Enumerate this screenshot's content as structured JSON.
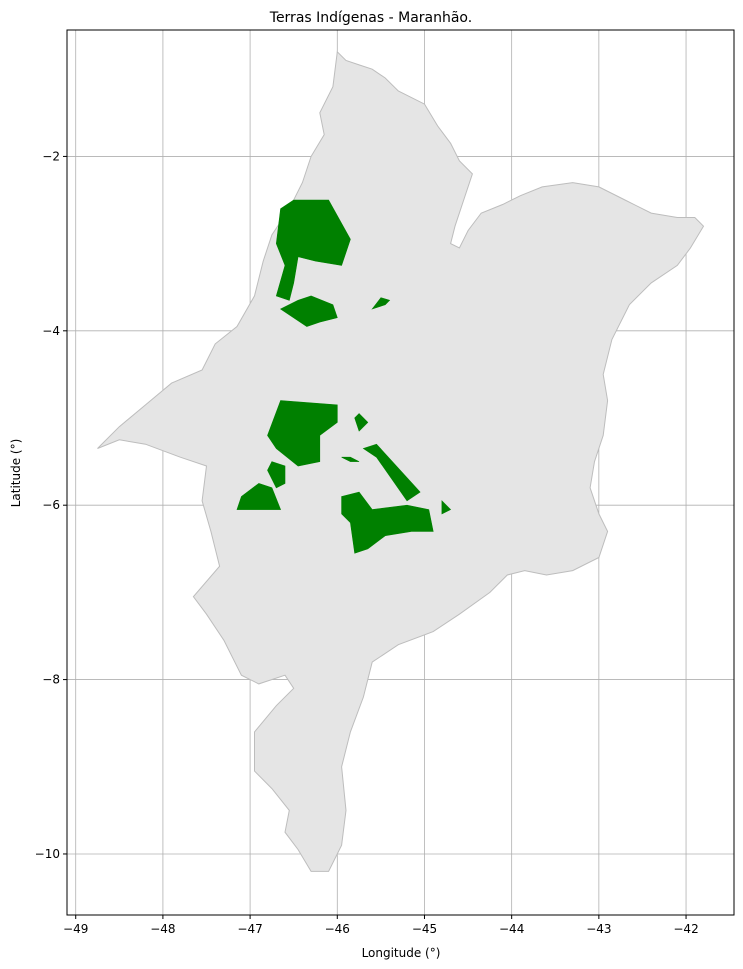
{
  "map": {
    "title": "Terras Indígenas - Maranhão.",
    "xlabel": "Longitude (°)",
    "ylabel": "Latitude (°)",
    "xlim": [
      -49.1,
      -41.45
    ],
    "ylim": [
      -10.7,
      -0.55
    ],
    "grid": true,
    "x_ticks": [
      {
        "value": -49,
        "label": "−49"
      },
      {
        "value": -48,
        "label": "−48"
      },
      {
        "value": -47,
        "label": "−47"
      },
      {
        "value": -46,
        "label": "−46"
      },
      {
        "value": -45,
        "label": "−45"
      },
      {
        "value": -44,
        "label": "−44"
      },
      {
        "value": -43,
        "label": "−43"
      },
      {
        "value": -42,
        "label": "−42"
      }
    ],
    "y_ticks": [
      {
        "value": -2,
        "label": "−2"
      },
      {
        "value": -4,
        "label": "−4"
      },
      {
        "value": -6,
        "label": "−6"
      },
      {
        "value": -8,
        "label": "−8"
      },
      {
        "value": -10,
        "label": "−10"
      }
    ],
    "colors": {
      "state_fill": "#e5e5e5",
      "state_edge": "#bdbdbd",
      "territory_fill": "#008000",
      "grid": "#b0b0b0"
    },
    "state_outline": [
      [
        -46.0,
        -0.8
      ],
      [
        -45.9,
        -0.9
      ],
      [
        -45.75,
        -0.95
      ],
      [
        -45.6,
        -1.0
      ],
      [
        -45.45,
        -1.1
      ],
      [
        -45.3,
        -1.25
      ],
      [
        -45.0,
        -1.4
      ],
      [
        -44.85,
        -1.65
      ],
      [
        -44.7,
        -1.85
      ],
      [
        -44.6,
        -2.05
      ],
      [
        -44.45,
        -2.2
      ],
      [
        -44.55,
        -2.5
      ],
      [
        -44.65,
        -2.8
      ],
      [
        -44.7,
        -3.0
      ],
      [
        -44.6,
        -3.05
      ],
      [
        -44.5,
        -2.85
      ],
      [
        -44.35,
        -2.65
      ],
      [
        -44.1,
        -2.55
      ],
      [
        -43.9,
        -2.45
      ],
      [
        -43.65,
        -2.35
      ],
      [
        -43.3,
        -2.3
      ],
      [
        -43.0,
        -2.35
      ],
      [
        -42.7,
        -2.5
      ],
      [
        -42.4,
        -2.65
      ],
      [
        -42.1,
        -2.7
      ],
      [
        -41.9,
        -2.7
      ],
      [
        -41.8,
        -2.8
      ],
      [
        -41.95,
        -3.05
      ],
      [
        -42.1,
        -3.25
      ],
      [
        -42.4,
        -3.45
      ],
      [
        -42.65,
        -3.7
      ],
      [
        -42.85,
        -4.1
      ],
      [
        -42.95,
        -4.5
      ],
      [
        -42.9,
        -4.8
      ],
      [
        -42.95,
        -5.2
      ],
      [
        -43.05,
        -5.5
      ],
      [
        -43.1,
        -5.8
      ],
      [
        -43.0,
        -6.1
      ],
      [
        -42.9,
        -6.3
      ],
      [
        -43.0,
        -6.6
      ],
      [
        -43.3,
        -6.75
      ],
      [
        -43.6,
        -6.8
      ],
      [
        -43.85,
        -6.75
      ],
      [
        -44.05,
        -6.8
      ],
      [
        -44.25,
        -7.0
      ],
      [
        -44.6,
        -7.25
      ],
      [
        -44.9,
        -7.45
      ],
      [
        -45.3,
        -7.6
      ],
      [
        -45.6,
        -7.8
      ],
      [
        -45.7,
        -8.2
      ],
      [
        -45.85,
        -8.6
      ],
      [
        -45.95,
        -9.0
      ],
      [
        -45.9,
        -9.5
      ],
      [
        -45.95,
        -9.9
      ],
      [
        -46.1,
        -10.2
      ],
      [
        -46.3,
        -10.2
      ],
      [
        -46.45,
        -9.95
      ],
      [
        -46.6,
        -9.75
      ],
      [
        -46.55,
        -9.5
      ],
      [
        -46.75,
        -9.25
      ],
      [
        -46.95,
        -9.05
      ],
      [
        -46.95,
        -8.6
      ],
      [
        -46.7,
        -8.3
      ],
      [
        -46.5,
        -8.1
      ],
      [
        -46.6,
        -7.95
      ],
      [
        -46.9,
        -8.05
      ],
      [
        -47.1,
        -7.95
      ],
      [
        -47.3,
        -7.55
      ],
      [
        -47.5,
        -7.25
      ],
      [
        -47.65,
        -7.05
      ],
      [
        -47.35,
        -6.7
      ],
      [
        -47.45,
        -6.3
      ],
      [
        -47.55,
        -5.95
      ],
      [
        -47.5,
        -5.55
      ],
      [
        -47.8,
        -5.45
      ],
      [
        -48.2,
        -5.3
      ],
      [
        -48.5,
        -5.25
      ],
      [
        -48.75,
        -5.35
      ],
      [
        -48.5,
        -5.1
      ],
      [
        -48.2,
        -4.85
      ],
      [
        -47.9,
        -4.6
      ],
      [
        -47.55,
        -4.45
      ],
      [
        -47.4,
        -4.15
      ],
      [
        -47.15,
        -3.95
      ],
      [
        -46.95,
        -3.6
      ],
      [
        -46.85,
        -3.2
      ],
      [
        -46.75,
        -2.9
      ],
      [
        -46.55,
        -2.6
      ],
      [
        -46.4,
        -2.3
      ],
      [
        -46.3,
        -2.0
      ],
      [
        -46.15,
        -1.75
      ],
      [
        -46.2,
        -1.5
      ],
      [
        -46.05,
        -1.2
      ],
      [
        -46.0,
        -0.8
      ]
    ],
    "territories": [
      [
        [
          -46.65,
          -2.6
        ],
        [
          -46.5,
          -2.5
        ],
        [
          -46.1,
          -2.5
        ],
        [
          -45.85,
          -2.95
        ],
        [
          -45.95,
          -3.25
        ],
        [
          -46.25,
          -3.2
        ],
        [
          -46.45,
          -3.15
        ],
        [
          -46.5,
          -3.45
        ],
        [
          -46.55,
          -3.65
        ],
        [
          -46.7,
          -3.6
        ],
        [
          -46.6,
          -3.25
        ],
        [
          -46.7,
          -3.0
        ],
        [
          -46.65,
          -2.6
        ]
      ],
      [
        [
          -46.65,
          -3.75
        ],
        [
          -46.45,
          -3.65
        ],
        [
          -46.3,
          -3.6
        ],
        [
          -46.05,
          -3.7
        ],
        [
          -46.0,
          -3.85
        ],
        [
          -46.2,
          -3.9
        ],
        [
          -46.35,
          -3.95
        ],
        [
          -46.65,
          -3.75
        ]
      ],
      [
        [
          -45.6,
          -3.75
        ],
        [
          -45.45,
          -3.7
        ],
        [
          -45.4,
          -3.65
        ],
        [
          -45.5,
          -3.62
        ],
        [
          -45.6,
          -3.75
        ]
      ],
      [
        [
          -46.65,
          -4.8
        ],
        [
          -46.0,
          -4.85
        ],
        [
          -46.0,
          -5.05
        ],
        [
          -46.2,
          -5.2
        ],
        [
          -46.2,
          -5.5
        ],
        [
          -46.45,
          -5.55
        ],
        [
          -46.7,
          -5.35
        ],
        [
          -46.8,
          -5.2
        ],
        [
          -46.65,
          -4.8
        ]
      ],
      [
        [
          -46.75,
          -5.5
        ],
        [
          -46.6,
          -5.55
        ],
        [
          -46.6,
          -5.75
        ],
        [
          -46.7,
          -5.8
        ],
        [
          -46.8,
          -5.6
        ],
        [
          -46.75,
          -5.5
        ]
      ],
      [
        [
          -45.75,
          -4.95
        ],
        [
          -45.65,
          -5.05
        ],
        [
          -45.75,
          -5.15
        ],
        [
          -45.8,
          -5.0
        ],
        [
          -45.75,
          -4.95
        ]
      ],
      [
        [
          -45.95,
          -5.45
        ],
        [
          -45.85,
          -5.5
        ],
        [
          -45.75,
          -5.5
        ],
        [
          -45.85,
          -5.45
        ],
        [
          -45.95,
          -5.45
        ]
      ],
      [
        [
          -45.7,
          -5.35
        ],
        [
          -45.55,
          -5.45
        ],
        [
          -45.2,
          -5.95
        ],
        [
          -45.05,
          -5.85
        ],
        [
          -45.55,
          -5.3
        ],
        [
          -45.7,
          -5.35
        ]
      ],
      [
        [
          -46.9,
          -5.75
        ],
        [
          -46.75,
          -5.8
        ],
        [
          -46.65,
          -6.05
        ],
        [
          -46.9,
          -6.05
        ],
        [
          -47.15,
          -6.05
        ],
        [
          -47.1,
          -5.9
        ],
        [
          -46.9,
          -5.75
        ]
      ],
      [
        [
          -45.95,
          -5.9
        ],
        [
          -45.75,
          -5.85
        ],
        [
          -45.6,
          -6.05
        ],
        [
          -45.2,
          -6.0
        ],
        [
          -44.95,
          -6.05
        ],
        [
          -44.9,
          -6.3
        ],
        [
          -45.15,
          -6.3
        ],
        [
          -45.45,
          -6.35
        ],
        [
          -45.65,
          -6.5
        ],
        [
          -45.8,
          -6.55
        ],
        [
          -45.85,
          -6.2
        ],
        [
          -45.95,
          -6.1
        ],
        [
          -45.95,
          -5.9
        ]
      ],
      [
        [
          -44.8,
          -5.95
        ],
        [
          -44.7,
          -6.05
        ],
        [
          -44.8,
          -6.1
        ],
        [
          -44.8,
          -5.95
        ]
      ]
    ]
  }
}
